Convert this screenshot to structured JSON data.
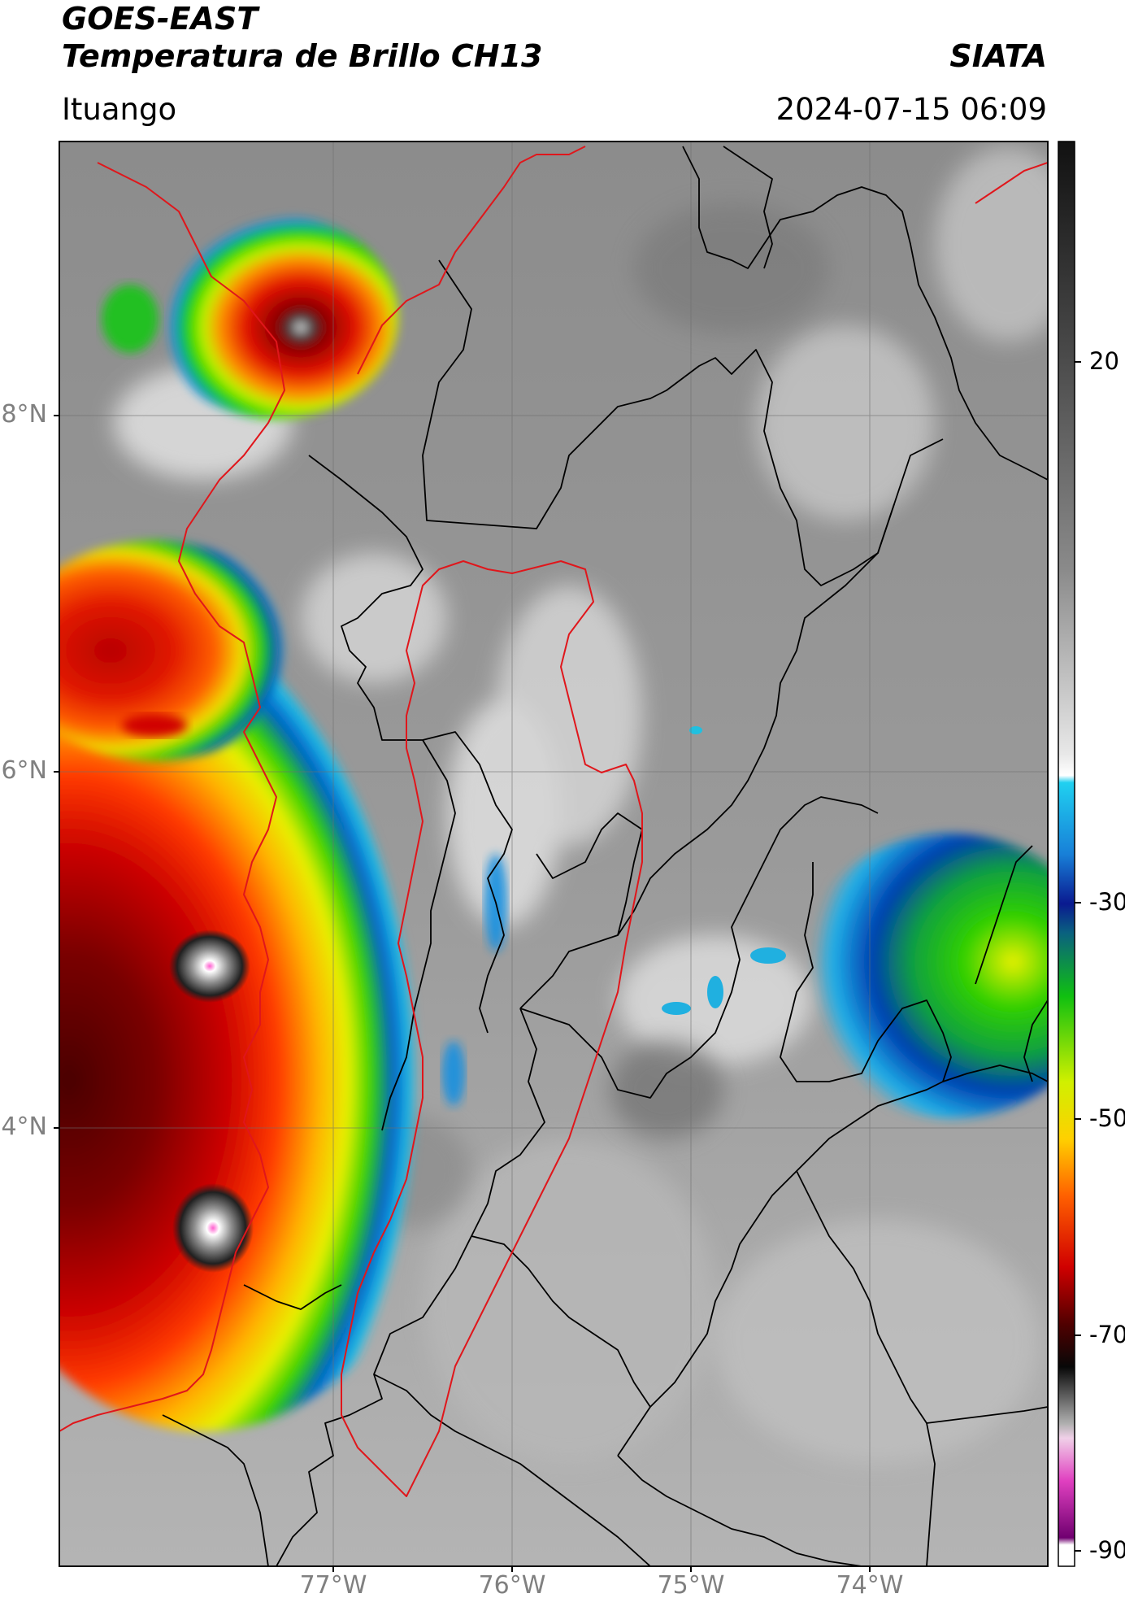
{
  "header": {
    "title_line1": "GOES-EAST",
    "title_line2": "Temperatura de Brillo CH13",
    "organization": "SIATA",
    "place": "Ituango",
    "datetime": "2024-07-15 06:09"
  },
  "map": {
    "lat_labels": [
      "8°N",
      "6°N",
      "4°N"
    ],
    "lon_labels": [
      "77°W",
      "76°W",
      "75°W",
      "74°W"
    ],
    "border_color_countries": "#e0161b",
    "border_color_departments": "#000000"
  },
  "colorbar": {
    "tick_labels": [
      "20",
      "-30",
      "-50",
      "-70",
      "-90"
    ]
  }
}
